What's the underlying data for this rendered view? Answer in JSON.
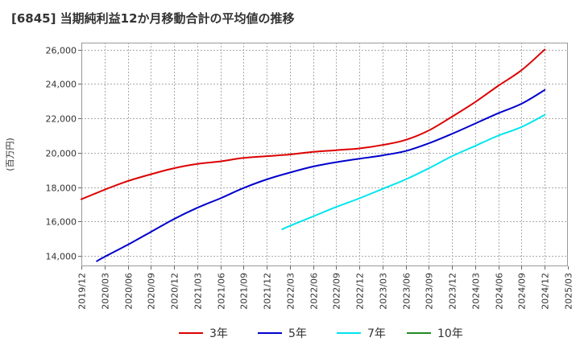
{
  "chart_data": {
    "type": "line",
    "title": "[6845]  当期純利益12か月移動合計の平均値の推移",
    "ylabel": "(百万円)",
    "xlabel": "",
    "ylim": [
      13400,
      26400
    ],
    "y_ticks": [
      14000,
      16000,
      18000,
      20000,
      22000,
      24000,
      26000
    ],
    "y_tick_labels": [
      "14,000",
      "16,000",
      "18,000",
      "20,000",
      "22,000",
      "24,000",
      "26,000"
    ],
    "x_tick_labels": [
      "2019/12",
      "2020/03",
      "2020/06",
      "2020/09",
      "2020/12",
      "2021/03",
      "2021/06",
      "2021/09",
      "2021/12",
      "2022/03",
      "2022/06",
      "2022/09",
      "2022/12",
      "2023/03",
      "2023/06",
      "2023/09",
      "2023/12",
      "2024/03",
      "2024/06",
      "2024/09",
      "2024/12",
      "2025/03"
    ],
    "grid": true,
    "legend_position": "bottom",
    "series": [
      {
        "name": "3年",
        "color": "#dd0000",
        "x": [
          "2019/12",
          "2020/03",
          "2020/06",
          "2020/09",
          "2020/12",
          "2021/03",
          "2021/06",
          "2021/09",
          "2021/12",
          "2022/03",
          "2022/06",
          "2022/09",
          "2022/12",
          "2023/03",
          "2023/06",
          "2023/09",
          "2023/12",
          "2024/03",
          "2024/06",
          "2024/09",
          "2024/12"
        ],
        "values": [
          17300,
          17850,
          18350,
          18750,
          19100,
          19350,
          19500,
          19700,
          19800,
          19900,
          20050,
          20150,
          20250,
          20450,
          20750,
          21300,
          22100,
          22950,
          23900,
          24800,
          26000
        ]
      },
      {
        "name": "5年",
        "color": "#0000cc",
        "x": [
          "2020/02",
          "2020/03",
          "2020/06",
          "2020/09",
          "2020/12",
          "2021/03",
          "2021/06",
          "2021/09",
          "2021/12",
          "2022/03",
          "2022/06",
          "2022/09",
          "2022/12",
          "2023/03",
          "2023/06",
          "2023/09",
          "2023/12",
          "2024/03",
          "2024/06",
          "2024/09",
          "2024/12"
        ],
        "values": [
          13700,
          13950,
          14650,
          15400,
          16150,
          16800,
          17350,
          17950,
          18450,
          18850,
          19200,
          19450,
          19650,
          19850,
          20100,
          20550,
          21100,
          21700,
          22300,
          22850,
          23650
        ]
      },
      {
        "name": "7年",
        "color": "#00e5ee",
        "x": [
          "2022/02",
          "2022/03",
          "2022/06",
          "2022/09",
          "2022/12",
          "2023/03",
          "2023/06",
          "2023/09",
          "2023/12",
          "2024/03",
          "2024/06",
          "2024/09",
          "2024/12"
        ],
        "values": [
          15550,
          15750,
          16300,
          16850,
          17350,
          17900,
          18450,
          19100,
          19800,
          20400,
          21000,
          21500,
          22200
        ]
      },
      {
        "name": "10年",
        "color": "#228b22",
        "x": [],
        "values": []
      }
    ]
  }
}
